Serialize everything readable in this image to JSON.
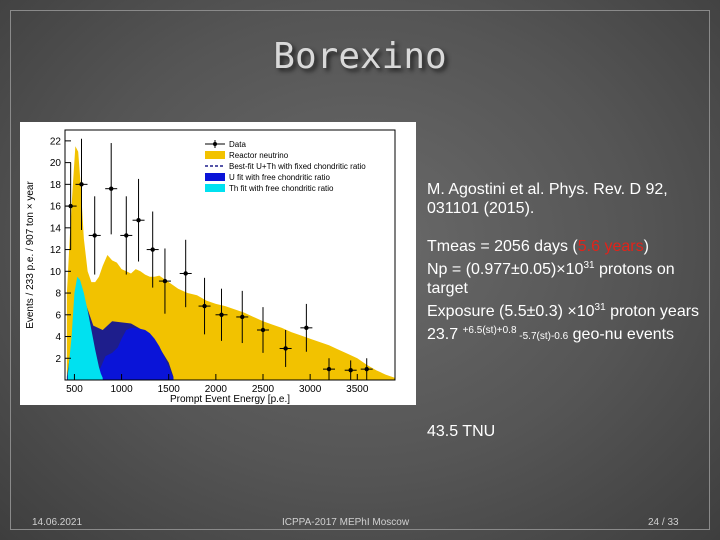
{
  "slide": {
    "title": "Borexino",
    "info": {
      "reference": "M. Agostini et al. Phys. Rev. D 92, 031101 (2015).",
      "tmeas_prefix": "Tmeas = 2056 days (",
      "tmeas_highlight": "5.6 years",
      "tmeas_suffix": ")",
      "np_prefix": "Np = (0.977±0.05)×10",
      "np_exp": "31",
      "np_suffix": " protons on target",
      "exposure_prefix": "Exposure (5.5±0.3) ×10",
      "exposure_exp": "31",
      "exposure_suffix": " proton years",
      "geonu_value": "23.7 ",
      "geonu_sup": "+6.5(st)+0.8",
      "geonu_sub": " -5.7(st)-0.6",
      "geonu_suffix": " geo-nu events",
      "tnu": "43.5 TNU",
      "highlight_color": "#e2231a"
    },
    "footer": {
      "date": "14.06.2021",
      "conference": "ICPPA-2017 MEPhI Moscow",
      "page": "24 / 33"
    }
  },
  "chart_data": {
    "type": "area",
    "xlabel": "Prompt Event Energy [p.e.]",
    "ylabel": "Events / 233 p.e. / 907 ton × year",
    "xlim": [
      400,
      3900
    ],
    "ylim": [
      0,
      23
    ],
    "xticks": [
      500,
      1000,
      1500,
      2000,
      2500,
      3000,
      3500
    ],
    "yticks": [
      2,
      4,
      6,
      8,
      10,
      12,
      14,
      16,
      18,
      20,
      22
    ],
    "grid": false,
    "legend_position": "top-right",
    "legend": [
      "Data",
      "Reactor neutrino",
      "Best-fit U+Th with fixed chondritic ratio",
      "U fit with free chondritic ratio",
      "Th fit with free chondritic ratio"
    ],
    "series": [
      {
        "name": "Reactor neutrino",
        "color": "#f2c200",
        "x": [
          420,
          450,
          480,
          510,
          540,
          570,
          600,
          640,
          680,
          720,
          760,
          800,
          850,
          900,
          950,
          1000,
          1050,
          1100,
          1150,
          1200,
          1250,
          1300,
          1350,
          1400,
          1450,
          1500,
          1600,
          1700,
          1800,
          1900,
          2000,
          2100,
          2200,
          2300,
          2400,
          2500,
          2600,
          2700,
          2800,
          2900,
          3000,
          3100,
          3200,
          3300,
          3400,
          3500,
          3600,
          3700,
          3800,
          3900
        ],
        "y": [
          8.0,
          13.0,
          17.5,
          21.5,
          21.0,
          17.5,
          13.0,
          10.0,
          9.0,
          9.0,
          9.5,
          10.5,
          11.5,
          11.0,
          10.8,
          10.2,
          10.0,
          9.8,
          10.2,
          10.0,
          9.7,
          9.5,
          9.5,
          9.6,
          9.3,
          9.0,
          8.4,
          8.0,
          7.8,
          7.3,
          7.0,
          6.8,
          6.5,
          6.2,
          5.8,
          5.4,
          5.1,
          4.8,
          4.4,
          4.1,
          3.8,
          3.5,
          3.2,
          2.8,
          2.4,
          2.0,
          1.4,
          0.9,
          0.5,
          0.2
        ]
      },
      {
        "name": "Best-fit U+Th with fixed chondritic ratio",
        "color": "#1e1e8c",
        "x": [
          420,
          500,
          600,
          700,
          800,
          900,
          1000,
          1100,
          1200,
          1300,
          1400,
          1500,
          1550
        ],
        "y": [
          0.3,
          5.0,
          7.5,
          5.0,
          4.6,
          5.4,
          5.3,
          5.2,
          4.7,
          4.0,
          3.0,
          1.6,
          0.3
        ]
      },
      {
        "name": "U fit with free chondritic ratio",
        "color": "#0a14d8",
        "x": [
          720,
          780,
          830,
          900,
          960,
          1000,
          1050,
          1100,
          1150,
          1200,
          1250,
          1300,
          1350,
          1400,
          1450,
          1500,
          1550
        ],
        "y": [
          0.2,
          1.2,
          2.2,
          2.5,
          3.0,
          3.8,
          4.6,
          4.8,
          4.8,
          4.7,
          4.6,
          4.3,
          3.8,
          3.1,
          2.2,
          1.2,
          0.2
        ]
      },
      {
        "name": "Th fit with free chondritic ratio",
        "color": "#00e1f0",
        "x": [
          430,
          470,
          500,
          530,
          560,
          600,
          640,
          680,
          720,
          760,
          780,
          800
        ],
        "y": [
          0.5,
          4.0,
          8.0,
          9.5,
          9.2,
          8.0,
          6.4,
          4.6,
          2.8,
          1.2,
          0.6,
          0.2
        ]
      },
      {
        "name": "Data",
        "color": "#000000",
        "x": [
          460,
          575,
          715,
          890,
          1050,
          1180,
          1330,
          1460,
          1680,
          1880,
          2060,
          2280,
          2500,
          2740,
          2960,
          3200,
          3430,
          3600
        ],
        "y": [
          16.0,
          18.0,
          13.3,
          17.6,
          13.3,
          14.7,
          12.0,
          9.1,
          9.8,
          6.8,
          6.0,
          5.8,
          4.6,
          2.9,
          4.8,
          1.0,
          0.9,
          1.0
        ],
        "err": [
          4.0,
          4.2,
          3.6,
          4.2,
          3.6,
          3.8,
          3.5,
          3.0,
          3.1,
          2.6,
          2.4,
          2.4,
          2.1,
          1.7,
          2.2,
          1.0,
          0.9,
          1.0
        ]
      }
    ]
  }
}
